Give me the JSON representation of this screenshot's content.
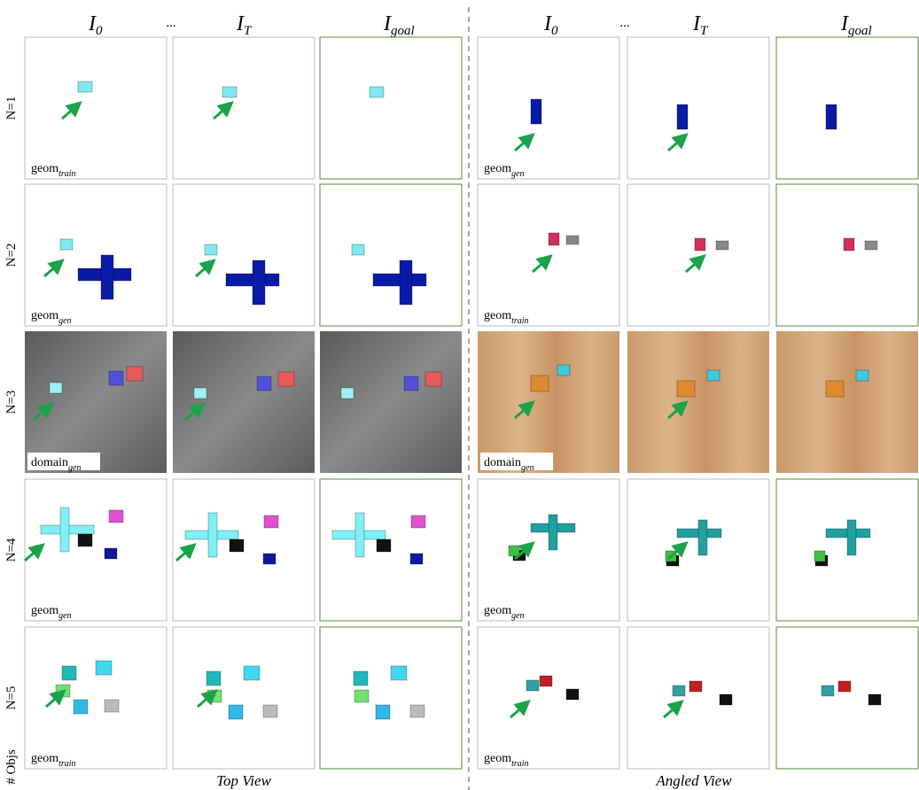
{
  "left_headers": [
    {
      "base": "I",
      "sub": "0"
    },
    {
      "text": "..."
    },
    {
      "base": "I",
      "sub": "T"
    },
    {
      "base": "I",
      "sub": "goal"
    }
  ],
  "right_headers": [
    {
      "base": "I",
      "sub": "0"
    },
    {
      "text": "..."
    },
    {
      "base": "I",
      "sub": "T"
    },
    {
      "base": "I",
      "sub": "goal"
    }
  ],
  "rows": [
    {
      "label": "N=1",
      "left_tag": {
        "base": "geom",
        "sub": "train"
      },
      "right_tag": {
        "base": "geom",
        "sub": "gen"
      }
    },
    {
      "label": "N=2",
      "left_tag": {
        "base": "geom",
        "sub": "gen"
      },
      "right_tag": {
        "base": "geom",
        "sub": "train"
      }
    },
    {
      "label": "N=3",
      "left_tag": {
        "base": "domain",
        "sub": "gen"
      },
      "right_tag": {
        "base": "domain",
        "sub": "gen"
      }
    },
    {
      "label": "N=4",
      "left_tag": {
        "base": "geom",
        "sub": "gen"
      },
      "right_tag": {
        "base": "geom",
        "sub": "gen"
      }
    },
    {
      "label": "N=5",
      "left_tag": {
        "base": "geom",
        "sub": "train"
      },
      "right_tag": {
        "base": "geom",
        "sub": "train"
      }
    }
  ],
  "axis_label": "# Objs",
  "view_labels": [
    "Top View",
    "Angled View"
  ]
}
